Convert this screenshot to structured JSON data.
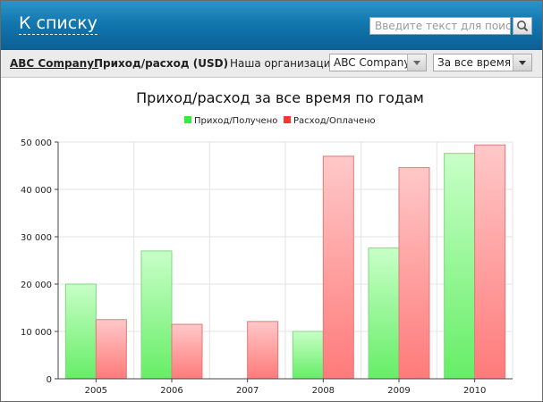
{
  "header": {
    "back_label": "К списку",
    "search_placeholder": "Введите текст для поиска"
  },
  "toolbar": {
    "company": "ABC Company:",
    "report_title": "Приход/расход (USD)",
    "org_label": "Наша организация:",
    "org_value": "ABC Company",
    "period_value": "За все время"
  },
  "colors": {
    "income": "#33ee33",
    "expense": "#ff3333",
    "header_bg": "#1177ae"
  },
  "icons": {
    "search": "magnifier-icon",
    "dropdown": "chevron-down-icon"
  },
  "chart_data": {
    "type": "bar",
    "title": "Приход/расход за все время по годам",
    "categories": [
      "2005",
      "2006",
      "2007",
      "2008",
      "2009",
      "2010"
    ],
    "series": [
      {
        "name": "Приход/Получено",
        "color": "#33ee33",
        "values": [
          20000,
          27000,
          0,
          10000,
          27600,
          47600
        ]
      },
      {
        "name": "Расход/Оплачено",
        "color": "#ff3333",
        "values": [
          12500,
          11500,
          12100,
          47000,
          44600,
          49400
        ]
      }
    ],
    "ylim": [
      0,
      50000
    ],
    "yticks": [
      {
        "value": 0,
        "label": "0"
      },
      {
        "value": 10000,
        "label": "10 000"
      },
      {
        "value": 20000,
        "label": "20 000"
      },
      {
        "value": 30000,
        "label": "30 000"
      },
      {
        "value": 40000,
        "label": "40 000"
      },
      {
        "value": 50000,
        "label": "50 000"
      }
    ],
    "grid": true,
    "legend_position": "top-center"
  }
}
